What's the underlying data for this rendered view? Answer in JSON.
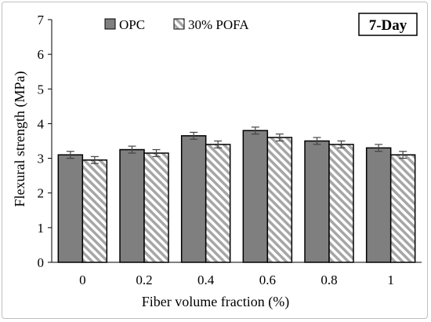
{
  "chart_data": {
    "type": "bar",
    "panel_label": "7-Day",
    "xlabel": "Fiber volume fraction (%)",
    "ylabel": "Flexural strength (MPa)",
    "ylim": [
      0,
      7
    ],
    "yticks": [
      "0",
      "1",
      "2",
      "3",
      "4",
      "5",
      "6",
      "7"
    ],
    "categories": [
      "0",
      "0.2",
      "0.4",
      "0.6",
      "0.8",
      "1"
    ],
    "series": [
      {
        "name": "OPC",
        "values": [
          3.1,
          3.25,
          3.65,
          3.8,
          3.5,
          3.3
        ],
        "errors": [
          0.1,
          0.1,
          0.1,
          0.1,
          0.1,
          0.1
        ],
        "color": "#7f7f7f",
        "pattern": "solid"
      },
      {
        "name": "30% POFA",
        "values": [
          2.95,
          3.15,
          3.4,
          3.6,
          3.4,
          3.1
        ],
        "errors": [
          0.1,
          0.1,
          0.1,
          0.1,
          0.1,
          0.1
        ],
        "color": "#a6a6a6",
        "pattern": "diagonal-stripes"
      }
    ],
    "legend_position": "top-left",
    "grid": false
  }
}
